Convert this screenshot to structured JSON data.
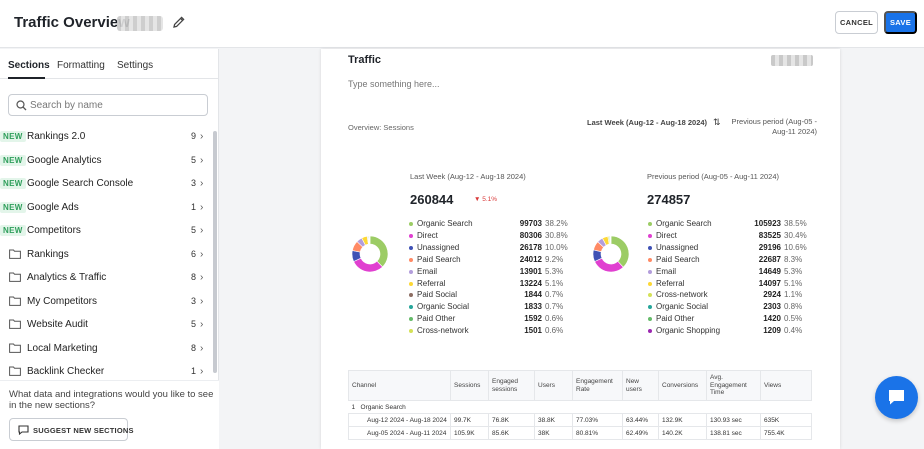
{
  "header": {
    "title": "Traffic Overview",
    "cancel_label": "CANCEL",
    "save_label": "SAVE"
  },
  "sidebar": {
    "tabs": [
      {
        "label": "Sections",
        "active": true
      },
      {
        "label": "Formatting",
        "active": false
      },
      {
        "label": "Settings",
        "active": false
      }
    ],
    "search_placeholder": "Search by name",
    "new_badge": "NEW",
    "items": [
      {
        "label": "Rankings 2.0",
        "new": true,
        "count": "9"
      },
      {
        "label": "Google Analytics",
        "new": true,
        "count": "5"
      },
      {
        "label": "Google Search Console",
        "new": true,
        "count": "3"
      },
      {
        "label": "Google Ads",
        "new": true,
        "count": "1"
      },
      {
        "label": "Competitors",
        "new": true,
        "count": "5"
      },
      {
        "label": "Rankings",
        "new": false,
        "count": "6"
      },
      {
        "label": "Analytics & Traffic",
        "new": false,
        "count": "8"
      },
      {
        "label": "My Competitors",
        "new": false,
        "count": "3"
      },
      {
        "label": "Website Audit",
        "new": false,
        "count": "5"
      },
      {
        "label": "Local Marketing",
        "new": false,
        "count": "8"
      },
      {
        "label": "Backlink Checker",
        "new": false,
        "count": "1"
      }
    ],
    "footer_question": "What data and integrations would you like to see in the new sections?",
    "suggest_label": "SUGGEST NEW SECTIONS"
  },
  "report": {
    "title": "Traffic",
    "description_placeholder": "Type something here...",
    "overview_label": "Overview: Sessions",
    "period_label": "Last Week (Aug-12 - Aug-18 2024)",
    "swap_icon": "swap-vertical-icon",
    "previous_period_label": "Previous period (Aug-05 - Aug-11 2024)",
    "current": {
      "period": "Last Week (Aug-12 - Aug-18 2024)",
      "total": "260844",
      "delta": "▼ 5.1%",
      "rows": [
        {
          "label": "Organic Search",
          "value": "99703",
          "pct": "38.2%",
          "color": "#9ccc65"
        },
        {
          "label": "Direct",
          "value": "80306",
          "pct": "30.8%",
          "color": "#e040d0"
        },
        {
          "label": "Unassigned",
          "value": "26178",
          "pct": "10.0%",
          "color": "#3f51b5"
        },
        {
          "label": "Paid Search",
          "value": "24012",
          "pct": "9.2%",
          "color": "#ff8a65"
        },
        {
          "label": "Email",
          "value": "13901",
          "pct": "5.3%",
          "color": "#b39ddb"
        },
        {
          "label": "Referral",
          "value": "13224",
          "pct": "5.1%",
          "color": "#fdd835"
        },
        {
          "label": "Paid Social",
          "value": "1844",
          "pct": "0.7%",
          "color": "#8d6e63"
        },
        {
          "label": "Organic Social",
          "value": "1833",
          "pct": "0.7%",
          "color": "#26a69a"
        },
        {
          "label": "Paid Other",
          "value": "1592",
          "pct": "0.6%",
          "color": "#66bb6a"
        },
        {
          "label": "Cross-network",
          "value": "1501",
          "pct": "0.6%",
          "color": "#d4e157"
        }
      ]
    },
    "previous": {
      "period": "Previous period (Aug-05 - Aug-11 2024)",
      "total": "274857",
      "rows": [
        {
          "label": "Organic Search",
          "value": "105923",
          "pct": "38.5%",
          "color": "#9ccc65"
        },
        {
          "label": "Direct",
          "value": "83525",
          "pct": "30.4%",
          "color": "#e040d0"
        },
        {
          "label": "Unassigned",
          "value": "29196",
          "pct": "10.6%",
          "color": "#3f51b5"
        },
        {
          "label": "Paid Search",
          "value": "22687",
          "pct": "8.3%",
          "color": "#ff8a65"
        },
        {
          "label": "Email",
          "value": "14649",
          "pct": "5.3%",
          "color": "#b39ddb"
        },
        {
          "label": "Referral",
          "value": "14097",
          "pct": "5.1%",
          "color": "#fdd835"
        },
        {
          "label": "Cross-network",
          "value": "2924",
          "pct": "1.1%",
          "color": "#d4e157"
        },
        {
          "label": "Organic Social",
          "value": "2303",
          "pct": "0.8%",
          "color": "#26a69a"
        },
        {
          "label": "Paid Other",
          "value": "1420",
          "pct": "0.5%",
          "color": "#66bb6a"
        },
        {
          "label": "Organic Shopping",
          "value": "1209",
          "pct": "0.4%",
          "color": "#9c27b0"
        }
      ]
    },
    "table": {
      "headers": [
        "Channel",
        "Sessions",
        "Engaged sessions",
        "Users",
        "Engagement Rate",
        "New users",
        "Conversions",
        "Avg. Engagement Time",
        "Views"
      ],
      "group": {
        "index": "1",
        "label": "Organic Search"
      },
      "rows": [
        [
          "Aug-12 2024 - Aug-18 2024",
          "99.7K",
          "76.8K",
          "38.8K",
          "77.03%",
          "63.44%",
          "132.9K",
          "130.93 sec",
          "635K"
        ],
        [
          "Aug-05 2024 - Aug-11 2024",
          "105.9K",
          "85.6K",
          "38K",
          "80.81%",
          "62.49%",
          "140.2K",
          "138.81 sec",
          "755.4K"
        ]
      ]
    }
  },
  "chat_icon": "chat-bubble-icon"
}
